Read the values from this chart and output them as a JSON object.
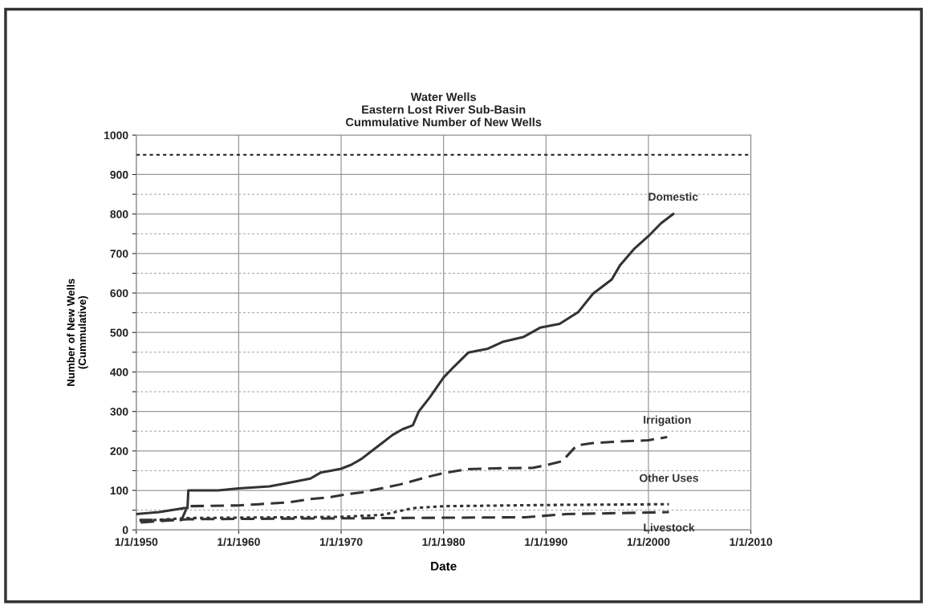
{
  "chart_data": {
    "type": "line",
    "title": "Water Wells",
    "subtitle": "Eastern Lost River Sub-Basin\nCummulative Number of New Wells",
    "xlabel": "Date",
    "ylabel": "Number of New Wells\n(Cummulative)",
    "xlim": [
      "1950-01-01",
      "2010-01-01"
    ],
    "xticks": [
      {
        "value": "1950-01-01",
        "label": "1/1/1950"
      },
      {
        "value": "1960-01-01",
        "label": "1/1/1960"
      },
      {
        "value": "1970-01-01",
        "label": "1/1/1970"
      },
      {
        "value": "1980-01-01",
        "label": "1/1/1980"
      },
      {
        "value": "1990-01-01",
        "label": "1/1/1990"
      },
      {
        "value": "2000-01-01",
        "label": "1/1/2000"
      },
      {
        "value": "2010-01-01",
        "label": "1/1/2010"
      }
    ],
    "ylim": [
      0,
      1000
    ],
    "yticks": [
      0,
      {
        "value": 50,
        "label": null
      },
      100,
      {
        "value": 150,
        "label": null
      },
      200,
      {
        "value": 250,
        "label": null
      },
      300,
      {
        "value": 350,
        "label": null
      },
      400,
      {
        "value": 450,
        "label": null
      },
      500,
      {
        "value": 550,
        "label": null
      },
      600,
      {
        "value": 650,
        "label": null
      },
      700,
      {
        "value": 750,
        "label": null
      },
      800,
      {
        "value": 850,
        "label": null
      },
      900,
      1000
    ],
    "grid": true,
    "legend": false,
    "marker": "none",
    "ref_lines": [
      {
        "axis": "y",
        "value": 950,
        "color": "#333333",
        "line_style": "dotted"
      }
    ],
    "series": [
      {
        "name": "Domestic",
        "color": "#333333",
        "line_style": "solid",
        "x": [
          "1950-01",
          "1952-04",
          "1954-08",
          "1955-01",
          "1955-02",
          "1958-01",
          "1960-01",
          "1963-01",
          "1965-01",
          "1967-01",
          "1968-01",
          "1969-01",
          "1970-01",
          "1971-01",
          "1972-01",
          "1973-01",
          "1974-01",
          "1975-01",
          "1976-01",
          "1977-01",
          "1977-08",
          "1978-09",
          "1980-01",
          "1981-01",
          "1982-06",
          "1984-05",
          "1985-10",
          "1987-11",
          "1989-06",
          "1991-05",
          "1993-03",
          "1994-08",
          "1996-06",
          "1997-04",
          "1998-08",
          "2000-01",
          "2001-04",
          "2002-06"
        ],
        "values": [
          40,
          45,
          55,
          55,
          100,
          100,
          105,
          110,
          120,
          130,
          145,
          150,
          155,
          165,
          180,
          200,
          220,
          240,
          255,
          265,
          300,
          336,
          386,
          413,
          449,
          459,
          476,
          489,
          512,
          522,
          552,
          598,
          634,
          671,
          711,
          744,
          777,
          800
        ]
      },
      {
        "name": "Irrigation",
        "color": "#333333",
        "line_style": "dashed",
        "x": [
          "1950-01",
          "1954-06",
          "1955-01",
          "1960-01",
          "1962-01",
          "1965-01",
          "1967-01",
          "1969-01",
          "1970-01",
          "1972-01",
          "1975-10",
          "1978-06",
          "1980-01",
          "1982-06",
          "1985-03",
          "1988-09",
          "1990-01",
          "1991-08",
          "1993-01",
          "1994-08",
          "1997-04",
          "2000-01",
          "2001-11"
        ],
        "values": [
          25,
          25,
          60,
          62,
          65,
          70,
          78,
          83,
          88,
          95,
          115,
          134,
          144,
          154,
          156,
          157,
          164,
          174,
          214,
          220,
          224,
          227,
          235
        ]
      },
      {
        "name": "Other Uses",
        "color": "#333333",
        "line_style": "dotted",
        "x": [
          "1950-01",
          "1955-01",
          "1970-01",
          "1974-01",
          "1977-01",
          "1980-01",
          "1990-01",
          "2002-01"
        ],
        "values": [
          22,
          30,
          33,
          38,
          55,
          60,
          63,
          65
        ]
      },
      {
        "name": "Livestock",
        "color": "#333333",
        "line_style": "dashed",
        "x": [
          "1950-01",
          "1955-01",
          "1975-01",
          "1988-01",
          "1992-01",
          "2002-01"
        ],
        "values": [
          18,
          27,
          30,
          32,
          40,
          45
        ]
      }
    ]
  }
}
